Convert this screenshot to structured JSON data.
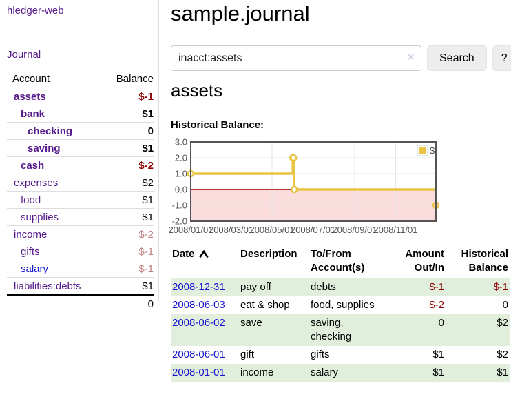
{
  "sidebar": {
    "brand": "hledger-web",
    "journal_link": "Journal",
    "accounts_header": {
      "account": "Account",
      "balance": "Balance"
    },
    "accounts": [
      {
        "name": "assets",
        "depth": 0,
        "bold": true,
        "balance": "$-1",
        "bal_class": "neg-strong"
      },
      {
        "name": "bank",
        "depth": 1,
        "bold": true,
        "balance": "$1",
        "bal_class": ""
      },
      {
        "name": "checking",
        "depth": 2,
        "bold": true,
        "balance": "0",
        "bal_class": ""
      },
      {
        "name": "saving",
        "depth": 2,
        "bold": true,
        "balance": "$1",
        "bal_class": ""
      },
      {
        "name": "cash",
        "depth": 1,
        "bold": true,
        "balance": "$-2",
        "bal_class": "neg-strong"
      },
      {
        "name": "expenses",
        "depth": 0,
        "bold": false,
        "balance": "$2",
        "bal_class": ""
      },
      {
        "name": "food",
        "depth": 1,
        "bold": false,
        "balance": "$1",
        "bal_class": ""
      },
      {
        "name": "supplies",
        "depth": 1,
        "bold": false,
        "balance": "$1",
        "bal_class": ""
      },
      {
        "name": "income",
        "depth": 0,
        "bold": false,
        "balance": "$-2",
        "bal_class": "neg-soft"
      },
      {
        "name": "gifts",
        "depth": 1,
        "bold": false,
        "balance": "$-1",
        "bal_class": "neg-soft"
      },
      {
        "name": "salary",
        "depth": 1,
        "bold": false,
        "blue": true,
        "balance": "$-1",
        "bal_class": "neg-soft"
      },
      {
        "name": "liabilities:debts",
        "depth": 0,
        "bold": false,
        "balance": "$1",
        "bal_class": ""
      }
    ],
    "total": "0"
  },
  "main": {
    "title": "sample.journal",
    "search": {
      "value": "inacct:assets",
      "clear_icon": "✕",
      "button_label": "Search",
      "help_label": "?"
    },
    "account_heading": "assets"
  },
  "chart_data": {
    "type": "line",
    "step": true,
    "title": "Historical Balance:",
    "x_min": "2008-01-01",
    "x_max": "2008-12-31",
    "ylim": [
      -2,
      3
    ],
    "y_ticks": [
      3,
      2,
      1,
      0,
      -1,
      -2
    ],
    "x_ticks": [
      {
        "date": "2008-01-01",
        "label": "2008/01/01"
      },
      {
        "date": "2008-03-01",
        "label": "2008/03/01"
      },
      {
        "date": "2008-05-01",
        "label": "2008/05/01"
      },
      {
        "date": "2008-07-01",
        "label": "2008/07/01"
      },
      {
        "date": "2008-09-01",
        "label": "2008/09/01"
      },
      {
        "date": "2008-11-01",
        "label": "2008/11/01"
      }
    ],
    "series": [
      {
        "name": "$",
        "color": "#e9c344",
        "points": [
          [
            "2008-01-01",
            1
          ],
          [
            "2008-06-01",
            2
          ],
          [
            "2008-06-02",
            2
          ],
          [
            "2008-06-03",
            0
          ],
          [
            "2008-12-31",
            -1
          ]
        ]
      }
    ],
    "negative_fill": "#fbdcdc",
    "zero_line_color": "#a40000",
    "grid": true,
    "legend_position": "top-right"
  },
  "register": {
    "columns": [
      {
        "lines": [
          "Date"
        ],
        "sort": "asc",
        "align": "left"
      },
      {
        "lines": [
          "Description"
        ],
        "align": "left"
      },
      {
        "lines": [
          "To/From",
          "Account(s)"
        ],
        "align": "left"
      },
      {
        "lines": [
          "Amount",
          "Out/In"
        ],
        "align": "right"
      },
      {
        "lines": [
          "Historical",
          "Balance"
        ],
        "align": "right"
      }
    ],
    "rows": [
      {
        "date": "2008-12-31",
        "description": "pay off",
        "accounts": "debts",
        "amount": "$-1",
        "balance": "$-1"
      },
      {
        "date": "2008-06-03",
        "description": "eat & shop",
        "accounts": "food, supplies",
        "amount": "$-2",
        "balance": "0"
      },
      {
        "date": "2008-06-02",
        "description": "save",
        "accounts": "saving,\nchecking",
        "amount": "0",
        "balance": "$2"
      },
      {
        "date": "2008-06-01",
        "description": "gift",
        "accounts": "gifts",
        "amount": "$1",
        "balance": "$2"
      },
      {
        "date": "2008-01-01",
        "description": "income",
        "accounts": "salary",
        "amount": "$1",
        "balance": "$1"
      }
    ]
  },
  "colors": {
    "link_purple": "#551a8b",
    "link_blue": "#1414cf",
    "negative_strong": "#8b0000",
    "negative_soft": "#c08181",
    "row_alt_green": "#e2eedc",
    "accent_yellow": "#e9c344"
  }
}
